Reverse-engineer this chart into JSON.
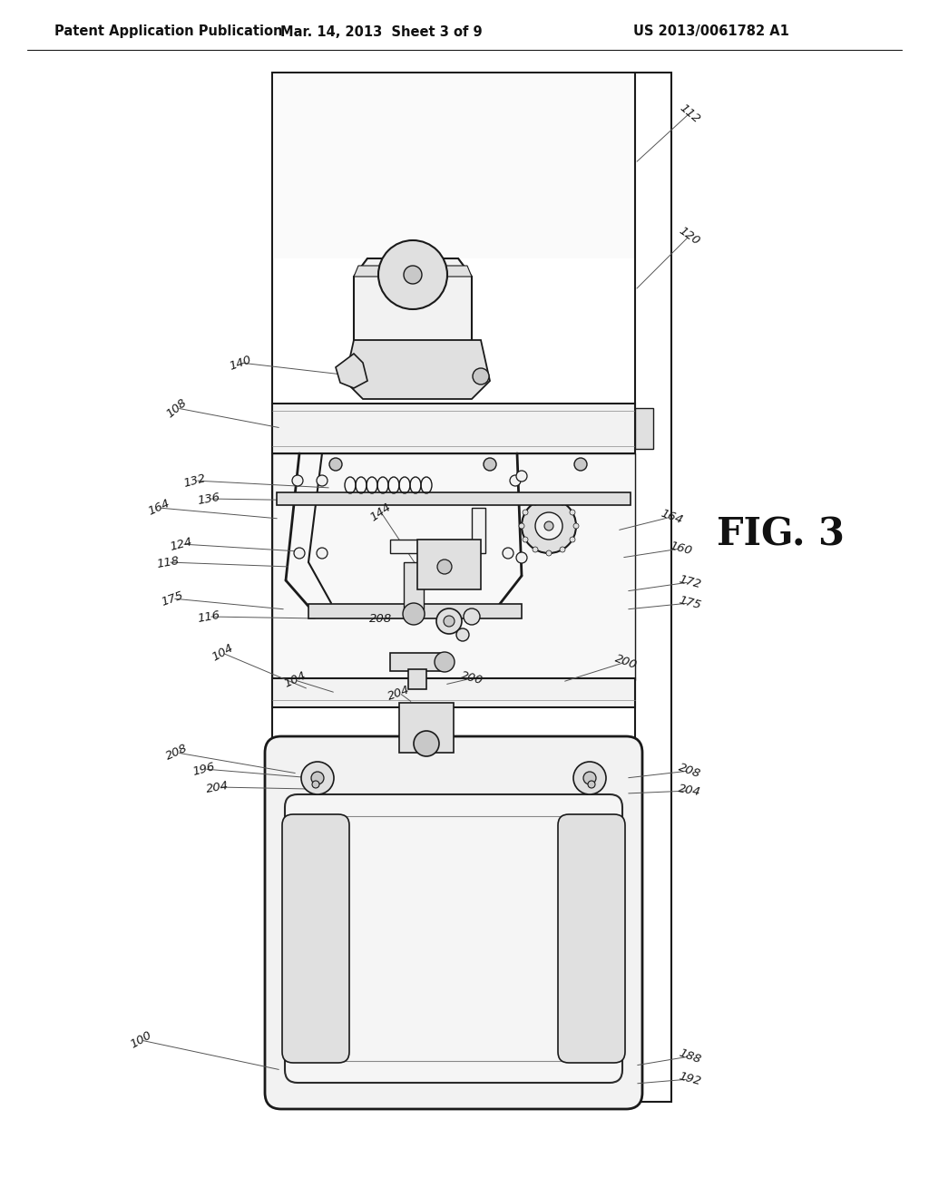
{
  "bg_color": "#ffffff",
  "header_left": "Patent Application Publication",
  "header_mid": "Mar. 14, 2013  Sheet 3 of 9",
  "header_right": "US 2013/0061782 A1",
  "fig_label": "FIG. 3",
  "lc": "#1a1a1a",
  "lc2": "#2a2a2a",
  "fc_light": "#f2f2f2",
  "fc_mid": "#e0e0e0",
  "fc_dark": "#c8c8c8",
  "header_fontsize": 10.5,
  "ref_fontsize": 9.5,
  "fig_fontsize": 30
}
